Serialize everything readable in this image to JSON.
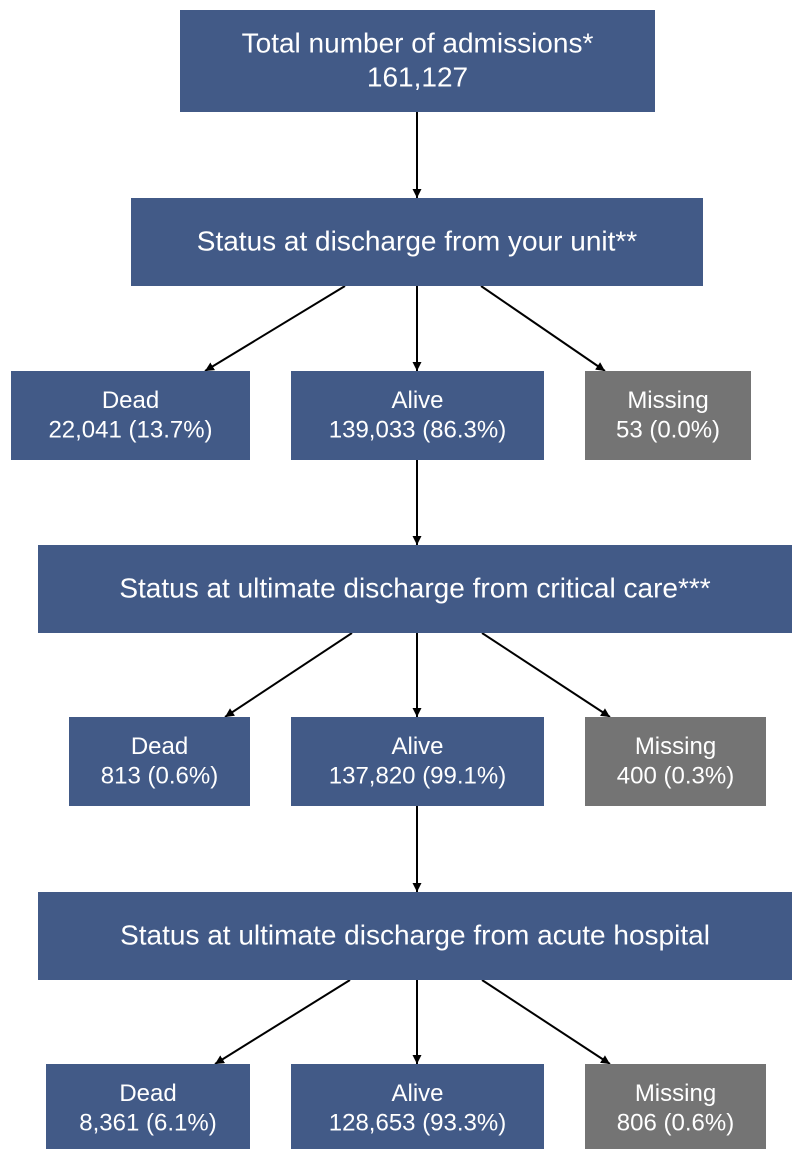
{
  "nodes": [
    {
      "lines": [
        "Total number of admissions*",
        "161,127"
      ]
    },
    {
      "lines": [
        "Status at discharge from your unit**"
      ]
    },
    {
      "lines": [
        "Dead",
        "22,041 (13.7%)"
      ]
    },
    {
      "lines": [
        "Alive",
        "139,033 (86.3%)"
      ]
    },
    {
      "lines": [
        "Missing",
        "53 (0.0%)"
      ]
    },
    {
      "lines": [
        "Status at ultimate discharge from critical care***"
      ]
    },
    {
      "lines": [
        "Dead",
        "813 (0.6%)"
      ]
    },
    {
      "lines": [
        "Alive",
        "137,820 (99.1%)"
      ]
    },
    {
      "lines": [
        "Missing",
        "400 (0.3%)"
      ]
    },
    {
      "lines": [
        "Status at ultimate discharge from acute hospital"
      ]
    },
    {
      "lines": [
        "Dead",
        "8,361 (6.1%)"
      ]
    },
    {
      "lines": [
        "Alive",
        "128,653 (93.3%)"
      ]
    },
    {
      "lines": [
        "Missing",
        "806 (0.6%)"
      ]
    }
  ]
}
